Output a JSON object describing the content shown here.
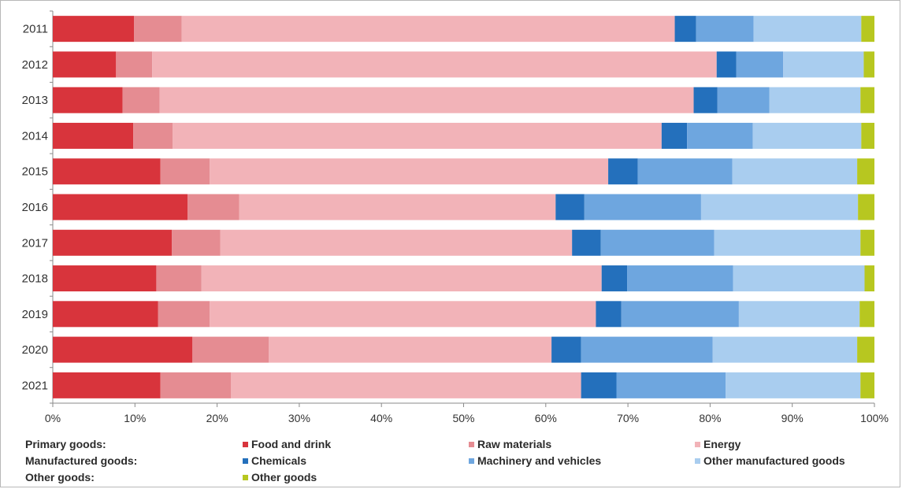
{
  "chart_data": {
    "type": "bar",
    "orientation": "horizontal",
    "stacked": "percent",
    "categories": [
      "2011",
      "2012",
      "2013",
      "2014",
      "2015",
      "2016",
      "2017",
      "2018",
      "2019",
      "2020",
      "2021"
    ],
    "series": [
      {
        "name": "Food and drink",
        "color": "#d8343c",
        "values": [
          9.9,
          7.7,
          8.5,
          9.8,
          13.1,
          16.4,
          14.5,
          12.6,
          12.8,
          17.0,
          13.1
        ]
      },
      {
        "name": "Raw materials",
        "color": "#e58c92",
        "values": [
          5.8,
          4.4,
          4.5,
          4.8,
          6.0,
          6.3,
          5.9,
          5.5,
          6.3,
          9.3,
          8.6
        ]
      },
      {
        "name": "Energy",
        "color": "#f2b3b8",
        "values": [
          60.0,
          68.7,
          65.0,
          59.5,
          48.5,
          38.5,
          42.8,
          48.7,
          47.0,
          34.4,
          42.6
        ]
      },
      {
        "name": "Chemicals",
        "color": "#2470bc",
        "values": [
          2.6,
          2.4,
          2.9,
          3.1,
          3.6,
          3.5,
          3.5,
          3.1,
          3.1,
          3.6,
          4.3
        ]
      },
      {
        "name": "Machinery and vehicles",
        "color": "#6ea6df",
        "values": [
          7.0,
          5.7,
          6.3,
          8.0,
          11.5,
          14.2,
          13.8,
          12.9,
          14.3,
          16.0,
          13.3
        ]
      },
      {
        "name": "Other manufactured goods",
        "color": "#a9cdef",
        "values": [
          13.1,
          9.8,
          11.1,
          13.2,
          15.2,
          19.1,
          17.8,
          16.0,
          14.7,
          17.6,
          16.4
        ]
      },
      {
        "name": "Other goods",
        "color": "#b7c720",
        "values": [
          1.6,
          1.3,
          1.7,
          1.6,
          2.1,
          2.0,
          1.7,
          1.2,
          1.8,
          2.1,
          1.7
        ]
      }
    ],
    "xlim": [
      0,
      100
    ],
    "x_ticks": [
      "0%",
      "10%",
      "20%",
      "30%",
      "40%",
      "50%",
      "60%",
      "70%",
      "80%",
      "90%",
      "100%"
    ],
    "grid": false,
    "legend_position": "bottom"
  },
  "legend": {
    "rows": [
      {
        "group": "Primary goods:",
        "items": [
          "Food and drink",
          "Raw materials",
          "Energy"
        ],
        "colors": [
          "#d8343c",
          "#e58c92",
          "#f2b3b8"
        ]
      },
      {
        "group": "Manufactured goods:",
        "items": [
          "Chemicals",
          "Machinery and vehicles",
          "Other manufactured goods"
        ],
        "colors": [
          "#2470bc",
          "#6ea6df",
          "#a9cdef"
        ]
      },
      {
        "group": "Other goods:",
        "items": [
          "Other goods"
        ],
        "colors": [
          "#b7c720"
        ]
      }
    ]
  }
}
